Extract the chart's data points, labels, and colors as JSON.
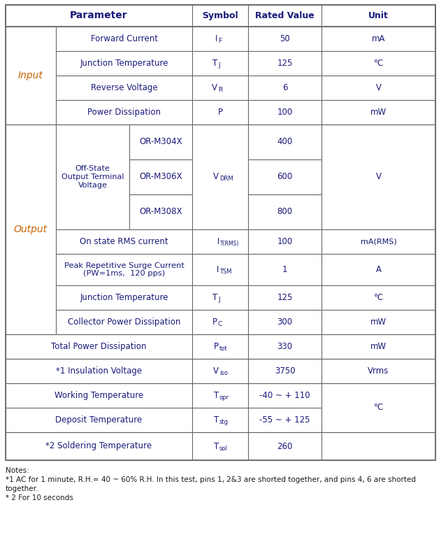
{
  "figsize": [
    6.31,
    7.85
  ],
  "dpi": 100,
  "bg_color": "#ffffff",
  "border_color": "#666666",
  "header_text_color": "#1a1a7a",
  "cell_text_color": "#1a1a7a",
  "group_label_color": "#c86400",
  "notes_color": "#1a1a1a",
  "notes": [
    "Notes:",
    "*1 AC for 1 minute, R.H.= 40 ~ 60% R.H. In this test, pins 1, 2&3 are shorted together, and pins 4, 6 are shorted",
    "together.",
    "* 2 For 10 seconds"
  ]
}
